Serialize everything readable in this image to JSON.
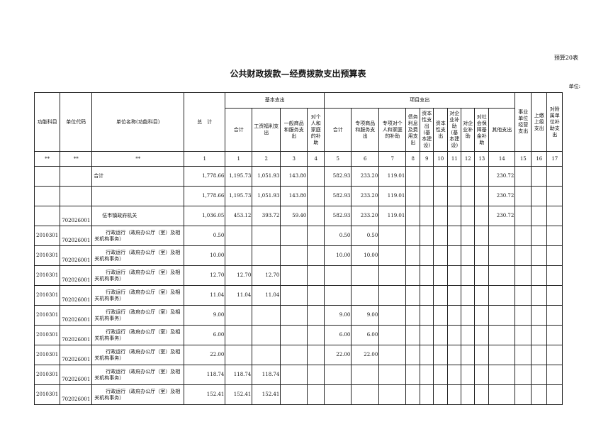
{
  "form_no": "预算20表",
  "title": "公共财政拨款—经费拨款支出预算表",
  "unit": "单位:",
  "headers": {
    "func": "功能科目",
    "code": "单位代码",
    "name": "单位名称(功能科目)",
    "total": "总　计",
    "basic": "基本支出",
    "project": "项目支出",
    "basic_cols": [
      "合计",
      "工资福利支出",
      "一般商品和服务支出",
      "对个人和家庭的补助"
    ],
    "project_cols": [
      "合计",
      "专项商品和服务支出",
      "专项对个人和家庭的补助",
      "债务利息及费用支出",
      "资本性支出(基本建设)",
      "资本性支出",
      "对企业补助(基本建设)",
      "对企业补助",
      "对社会保障基金补助",
      "其他支出"
    ],
    "other_cols": [
      "事业单位经营支出",
      "上缴上级支出",
      "对附属单位补助支出"
    ]
  },
  "col_numbers": [
    "**",
    "**",
    "**",
    "1",
    "1",
    "2",
    "3",
    "4",
    "5",
    "6",
    "7",
    "8",
    "9",
    "10",
    "11",
    "12",
    "13",
    "14",
    "15",
    "16",
    "17"
  ],
  "rows": [
    {
      "func": "",
      "code": "",
      "name": "合计",
      "v": [
        "1,778.66",
        "1,195.73",
        "1,051.93",
        "143.80",
        "",
        "582.93",
        "233.20",
        "119.01",
        "",
        "",
        "",
        "",
        "",
        "",
        "230.72",
        "",
        "",
        ""
      ]
    },
    {
      "func": "",
      "code": "",
      "name": "",
      "v": [
        "1,778.66",
        "1,195.73",
        "1,051.93",
        "143.80",
        "",
        "582.93",
        "233.20",
        "119.01",
        "",
        "",
        "",
        "",
        "",
        "",
        "230.72",
        "",
        "",
        ""
      ]
    },
    {
      "func": "",
      "code": "702026001",
      "name": "伍市镇政府机关",
      "v": [
        "1,036.05",
        "453.12",
        "393.72",
        "59.40",
        "",
        "582.93",
        "233.20",
        "119.01",
        "",
        "",
        "",
        "",
        "",
        "",
        "230.72",
        "",
        "",
        ""
      ]
    },
    {
      "func": "2010301",
      "code": "702026001",
      "name": "行政运行（政府办公厅（室）及相关机构事务）",
      "v": [
        "0.50",
        "",
        "",
        "",
        "",
        "0.50",
        "0.50",
        "",
        "",
        "",
        "",
        "",
        "",
        "",
        "",
        "",
        "",
        ""
      ]
    },
    {
      "func": "2010301",
      "code": "702026001",
      "name": "行政运行（政府办公厅（室）及相关机构事务）",
      "v": [
        "10.00",
        "",
        "",
        "",
        "",
        "10.00",
        "10.00",
        "",
        "",
        "",
        "",
        "",
        "",
        "",
        "",
        "",
        "",
        ""
      ]
    },
    {
      "func": "2010301",
      "code": "702026001",
      "name": "行政运行（政府办公厅（室）及相关机构事务）",
      "v": [
        "12.70",
        "12.70",
        "12.70",
        "",
        "",
        "",
        "",
        "",
        "",
        "",
        "",
        "",
        "",
        "",
        "",
        "",
        "",
        ""
      ]
    },
    {
      "func": "2010301",
      "code": "702026001",
      "name": "行政运行（政府办公厅（室）及相关机构事务）",
      "v": [
        "11.04",
        "11.04",
        "11.04",
        "",
        "",
        "",
        "",
        "",
        "",
        "",
        "",
        "",
        "",
        "",
        "",
        "",
        "",
        ""
      ]
    },
    {
      "func": "2010301",
      "code": "702026001",
      "name": "行政运行（政府办公厅（室）及相关机构事务）",
      "v": [
        "9.00",
        "",
        "",
        "",
        "",
        "9.00",
        "9.00",
        "",
        "",
        "",
        "",
        "",
        "",
        "",
        "",
        "",
        "",
        ""
      ]
    },
    {
      "func": "2010301",
      "code": "702026001",
      "name": "行政运行（政府办公厅（室）及相关机构事务）",
      "v": [
        "6.00",
        "",
        "",
        "",
        "",
        "6.00",
        "6.00",
        "",
        "",
        "",
        "",
        "",
        "",
        "",
        "",
        "",
        "",
        ""
      ]
    },
    {
      "func": "2010301",
      "code": "702026001",
      "name": "行政运行（政府办公厅（室）及相关机构事务）",
      "v": [
        "22.00",
        "",
        "",
        "",
        "",
        "22.00",
        "22.00",
        "",
        "",
        "",
        "",
        "",
        "",
        "",
        "",
        "",
        "",
        ""
      ]
    },
    {
      "func": "2010301",
      "code": "702026001",
      "name": "行政运行（政府办公厅（室）及相关机构事务）",
      "v": [
        "118.74",
        "118.74",
        "118.74",
        "",
        "",
        "",
        "",
        "",
        "",
        "",
        "",
        "",
        "",
        "",
        "",
        "",
        "",
        ""
      ]
    },
    {
      "func": "2010301",
      "code": "702026001",
      "name": "行政运行（政府办公厅（室）及相关机构事务）",
      "v": [
        "152.41",
        "152.41",
        "152.41",
        "",
        "",
        "",
        "",
        "",
        "",
        "",
        "",
        "",
        "",
        "",
        "",
        "",
        "",
        ""
      ]
    }
  ]
}
